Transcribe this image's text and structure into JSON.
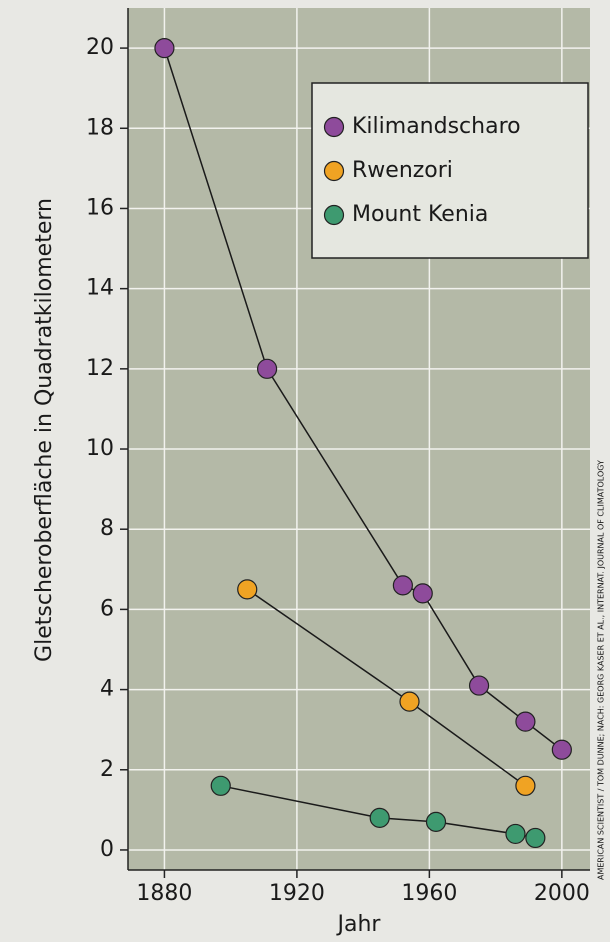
{
  "chart_data": {
    "type": "line",
    "ylabel": "Gletscheroberfläche in Quadratkilometern",
    "xlabel": "Jahr",
    "source": "AMERICAN SCIENTIST / TOM DUNNE; NACH: GEORG KASER ET AL., INTERNAT. JOURNAL OF CLIMATOLOGY",
    "xlim": [
      1869,
      2008.5
    ],
    "xticks": [
      1880,
      1920,
      1960,
      2000
    ],
    "ylim": [
      -0.5,
      21
    ],
    "yticks": [
      0,
      2,
      4,
      6,
      8,
      10,
      12,
      14,
      16,
      18,
      20
    ],
    "grid": true,
    "legend": "upper right",
    "series": [
      {
        "name": "Kilimandscharo",
        "color": "#8e4b9b",
        "x": [
          1880,
          1911,
          1952,
          1958,
          1975,
          1989,
          2000
        ],
        "values": [
          20,
          12,
          6.6,
          6.4,
          4.1,
          3.2,
          2.5
        ]
      },
      {
        "name": "Rwenzori",
        "color": "#f0a323",
        "x": [
          1905,
          1954,
          1989
        ],
        "values": [
          6.5,
          3.7,
          1.6
        ]
      },
      {
        "name": "Mount Kenia",
        "color": "#3e9a70",
        "x": [
          1897,
          1945,
          1962,
          1986,
          1992
        ],
        "values": [
          1.6,
          0.8,
          0.7,
          0.4,
          0.3
        ]
      }
    ]
  }
}
